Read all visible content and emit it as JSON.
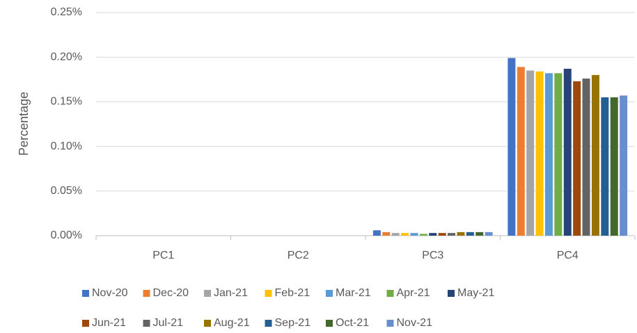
{
  "chart_data": {
    "type": "bar",
    "y_label": "Percentage",
    "categories": [
      "PC1",
      "PC2",
      "PC3",
      "PC4"
    ],
    "series": [
      {
        "name": "Nov-20",
        "color": "#4472c4",
        "values": [
          0,
          0,
          0.006,
          0.199
        ]
      },
      {
        "name": "Dec-20",
        "color": "#ed7d31",
        "values": [
          0,
          0,
          0.004,
          0.189
        ]
      },
      {
        "name": "Jan-21",
        "color": "#a5a5a5",
        "values": [
          0,
          0,
          0.003,
          0.185
        ]
      },
      {
        "name": "Feb-21",
        "color": "#ffc000",
        "values": [
          0,
          0,
          0.003,
          0.184
        ]
      },
      {
        "name": "Mar-21",
        "color": "#5b9bd5",
        "values": [
          0,
          0,
          0.003,
          0.182
        ]
      },
      {
        "name": "Apr-21",
        "color": "#70ad47",
        "values": [
          0,
          0,
          0.002,
          0.182
        ]
      },
      {
        "name": "May-21",
        "color": "#264478",
        "values": [
          0,
          0,
          0.003,
          0.187
        ]
      },
      {
        "name": "Jun-21",
        "color": "#9e480e",
        "values": [
          0,
          0,
          0.003,
          0.173
        ]
      },
      {
        "name": "Jul-21",
        "color": "#636363",
        "values": [
          0,
          0,
          0.003,
          0.176
        ]
      },
      {
        "name": "Aug-21",
        "color": "#997300",
        "values": [
          0,
          0,
          0.004,
          0.18
        ]
      },
      {
        "name": "Sep-21",
        "color": "#255e91",
        "values": [
          0,
          0,
          0.004,
          0.155
        ]
      },
      {
        "name": "Oct-21",
        "color": "#43682b",
        "values": [
          0,
          0,
          0.004,
          0.155
        ]
      },
      {
        "name": "Nov-21",
        "color": "#698ed0",
        "values": [
          0,
          0,
          0.004,
          0.157
        ]
      }
    ],
    "ylim": [
      0,
      0.25
    ],
    "yticks": [
      {
        "value": 0,
        "label": "0.00%"
      },
      {
        "value": 0.05,
        "label": "0.05%"
      },
      {
        "value": 0.1,
        "label": "0.10%"
      },
      {
        "value": 0.15,
        "label": "0.15%"
      },
      {
        "value": 0.2,
        "label": "0.20%"
      },
      {
        "value": 0.25,
        "label": "0.25%"
      }
    ],
    "grid": true,
    "legend": "bottom"
  }
}
